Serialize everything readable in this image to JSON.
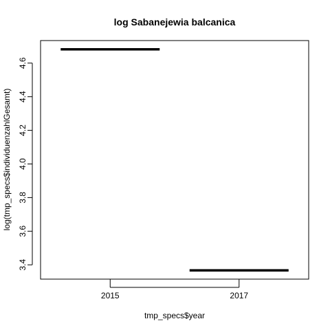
{
  "chart_data": {
    "type": "boxplot",
    "title": "log Sabanejewia balcanica",
    "xlabel": "tmp_specs$year",
    "ylabel": "log(tmp_specs$individuenzahlGesamt)",
    "categories": [
      "2015",
      "2017"
    ],
    "values": [
      4.682,
      3.367
    ],
    "ylim": [
      3.315,
      4.734
    ],
    "yticks": [
      "3.4",
      "3.6",
      "3.8",
      "4.0",
      "4.2",
      "4.4",
      "4.6"
    ],
    "grid": false,
    "colors": {
      "line": "#000000",
      "background": "#ffffff"
    }
  }
}
